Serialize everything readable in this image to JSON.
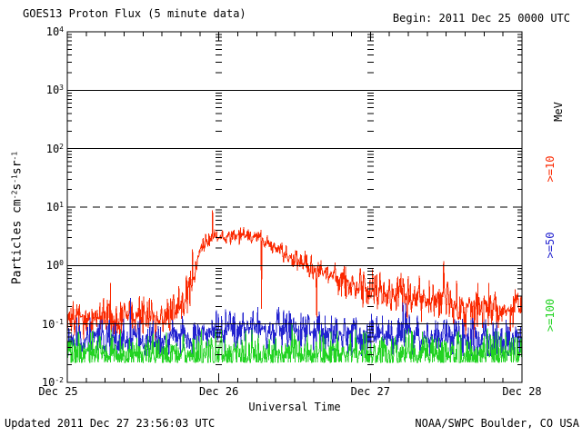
{
  "window": {
    "background": "#ffffff",
    "text_color": "#000000"
  },
  "header": {
    "title": "GOES13 Proton Flux (5 minute data)",
    "begin": "Begin: 2011 Dec 25 0000 UTC"
  },
  "footer": {
    "updated": "Updated 2011 Dec 27 23:56:03 UTC",
    "source": "NOAA/SWPC Boulder, CO USA"
  },
  "chart_data": {
    "type": "line",
    "title": "GOES13 Proton Flux (5 minute data)",
    "begin_label": "Begin: 2011 Dec 25 0000 UTC",
    "xlabel": "Universal Time",
    "ylabel": "Particles cm⁻²s⁻¹sr⁻¹",
    "ylabel_parts": [
      {
        "t": "Particles cm"
      },
      {
        "t": "-2",
        "sup": true
      },
      {
        "t": "s"
      },
      {
        "t": "-1",
        "sup": true
      },
      {
        "t": "sr"
      },
      {
        "t": "-1",
        "sup": true
      }
    ],
    "right_axis_unit": "MeV",
    "cadence_minutes": 5,
    "x_range_hours": [
      0,
      72
    ],
    "x_day_tick_hours": [
      0,
      24,
      48,
      72
    ],
    "x_tick_labels": [
      "Dec 25",
      "Dec 26",
      "Dec 27",
      "Dec 28"
    ],
    "x_minor_tick_step_hours": 3,
    "ylim": [
      0.01,
      10000
    ],
    "y_scale": "log",
    "y_tick_exponents": [
      4,
      3,
      2,
      1,
      0,
      -1,
      -2
    ],
    "y_solid_gridlines": [
      1000,
      100,
      1,
      0.1
    ],
    "y_dashed_gridlines": [
      10
    ],
    "vertical_dash_columns_hours": [
      24,
      48
    ],
    "axis_color": "#000000",
    "grid_on": true,
    "legend_position": "right-rotated",
    "series": [
      {
        "name": ">=10",
        "unit": "MeV",
        "color": "#fb2800",
        "label_center_y": 186,
        "noise_log10": 0.32,
        "spike_prob": 0.012,
        "floor": 0.055,
        "seed": 7,
        "dropouts": [
          {
            "t": 30.75,
            "v": 0.18
          },
          {
            "t": 39.5,
            "v": 0.13
          }
        ],
        "hourly_median_flux": [
          0.12,
          0.11,
          0.13,
          0.12,
          0.11,
          0.12,
          0.13,
          0.11,
          0.12,
          0.14,
          0.12,
          0.11,
          0.13,
          0.12,
          0.12,
          0.11,
          0.12,
          0.16,
          0.22,
          0.35,
          0.55,
          1.8,
          2.5,
          2.75,
          2.9,
          3.0,
          3.1,
          3.25,
          3.2,
          3.1,
          3.0,
          2.7,
          2.4,
          2.1,
          1.8,
          1.55,
          1.35,
          1.15,
          1.0,
          0.9,
          0.8,
          0.72,
          0.65,
          0.57,
          0.5,
          0.47,
          0.44,
          0.41,
          0.38,
          0.36,
          0.35,
          0.34,
          0.33,
          0.31,
          0.3,
          0.29,
          0.28,
          0.27,
          0.26,
          0.255,
          0.25,
          0.24,
          0.235,
          0.23,
          0.22,
          0.215,
          0.21,
          0.2,
          0.2,
          0.195,
          0.19,
          0.185,
          0.18
        ]
      },
      {
        "name": ">=50",
        "unit": "MeV",
        "color": "#2222cf",
        "label_center_y": 270,
        "noise_log10": 0.3,
        "spike_prob": 0.01,
        "floor": 0.028,
        "seed": 13,
        "dropouts": [],
        "hourly_median_flux": [
          0.055,
          0.052,
          0.056,
          0.054,
          0.057,
          0.053,
          0.055,
          0.056,
          0.052,
          0.055,
          0.057,
          0.054,
          0.056,
          0.053,
          0.055,
          0.056,
          0.054,
          0.055,
          0.057,
          0.058,
          0.06,
          0.065,
          0.07,
          0.073,
          0.075,
          0.078,
          0.08,
          0.082,
          0.083,
          0.085,
          0.085,
          0.084,
          0.083,
          0.082,
          0.08,
          0.079,
          0.078,
          0.076,
          0.075,
          0.073,
          0.072,
          0.07,
          0.069,
          0.068,
          0.067,
          0.066,
          0.065,
          0.064,
          0.063,
          0.062,
          0.061,
          0.06,
          0.06,
          0.059,
          0.059,
          0.058,
          0.058,
          0.057,
          0.057,
          0.056,
          0.056,
          0.056,
          0.055,
          0.055,
          0.055,
          0.054,
          0.054,
          0.054,
          0.053,
          0.053,
          0.053,
          0.052,
          0.052
        ]
      },
      {
        "name": ">=100",
        "unit": "MeV",
        "color": "#22d322",
        "label_center_y": 347,
        "noise_log10": 0.34,
        "spike_prob": 0.012,
        "floor": 0.022,
        "seed": 21,
        "dropouts": [],
        "hourly_median_flux": [
          0.03,
          0.029,
          0.031,
          0.03,
          0.032,
          0.029,
          0.03,
          0.031,
          0.029,
          0.03,
          0.031,
          0.03,
          0.029,
          0.031,
          0.03,
          0.029,
          0.032,
          0.03,
          0.029,
          0.031,
          0.03,
          0.031,
          0.029,
          0.03,
          0.031,
          0.03,
          0.029,
          0.031,
          0.03,
          0.032,
          0.029,
          0.03,
          0.031,
          0.029,
          0.03,
          0.031,
          0.03,
          0.029,
          0.031,
          0.03,
          0.029,
          0.032,
          0.03,
          0.029,
          0.031,
          0.03,
          0.031,
          0.029,
          0.03,
          0.031,
          0.03,
          0.029,
          0.031,
          0.03,
          0.032,
          0.029,
          0.03,
          0.031,
          0.029,
          0.03,
          0.031,
          0.03,
          0.029,
          0.031,
          0.03,
          0.029,
          0.032,
          0.03,
          0.029,
          0.031,
          0.03,
          0.031,
          0.029
        ]
      }
    ]
  }
}
